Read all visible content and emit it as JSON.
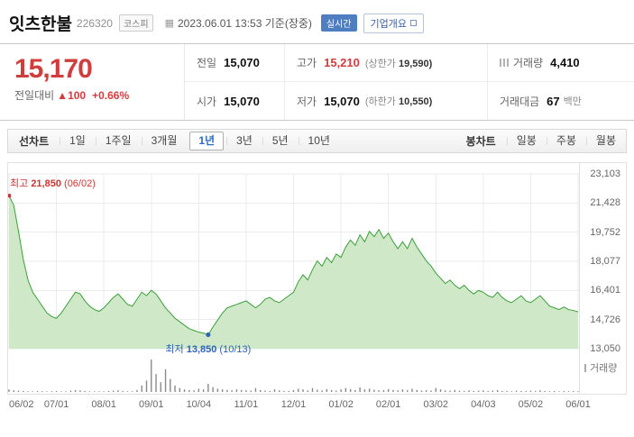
{
  "header": {
    "title": "잇츠한불",
    "code": "226320",
    "market_badge": "코스피",
    "timestamp": "2023.06.01 13:53 기준(장중)",
    "realtime_badge": "실시간",
    "overview_button": "기업개요"
  },
  "icons": {
    "calendar": "▦"
  },
  "price_panel": {
    "current_price": "15,170",
    "change_label": "전일대비",
    "change_arrow": "▲",
    "change_value": "100",
    "change_percent": "+0.66%",
    "rows": [
      [
        {
          "key": "prev",
          "label": "전일",
          "value": "15,070"
        },
        {
          "key": "high",
          "label": "고가",
          "value": "15,210",
          "red": true,
          "sub_label": "(상한가",
          "sub_value": "19,590)"
        },
        {
          "key": "volume",
          "label": "거래량",
          "value": "4,410",
          "icon": true
        }
      ],
      [
        {
          "key": "open",
          "label": "시가",
          "value": "15,070"
        },
        {
          "key": "low",
          "label": "저가",
          "value": "15,070",
          "sub_label": "(하한가",
          "sub_value": "10,550)"
        },
        {
          "key": "amount",
          "label": "거래대금",
          "value": "67",
          "unit": "백만"
        }
      ]
    ]
  },
  "toolbar": {
    "line_chart_label": "선차트",
    "periods": [
      "1일",
      "1주일",
      "3개월",
      "1년",
      "3년",
      "5년",
      "10년"
    ],
    "selected_period": "1년",
    "candle_chart_label": "봉차트",
    "candle_periods": [
      "일봉",
      "주봉",
      "월봉"
    ],
    "selected_candle": ""
  },
  "colors": {
    "up_red": "#d13c3c",
    "annotation_blue": "#2d62b8",
    "selected_tab_blue": "#2e6bc0",
    "realtime_badge_blue": "#4f7ec0"
  },
  "chart_data": {
    "type": "area",
    "ylim": [
      13050,
      23103
    ],
    "y_ticks": [
      "23,103",
      "21,428",
      "19,752",
      "18,077",
      "16,401",
      "14,726",
      "13,050"
    ],
    "x_labels": [
      "06/02",
      "07/01",
      "08/01",
      "09/01",
      "10/04",
      "11/01",
      "12/01",
      "01/02",
      "02/01",
      "03/02",
      "04/03",
      "05/02",
      "06/01"
    ],
    "x_label_indices": [
      0,
      10,
      20,
      30,
      40,
      50,
      60,
      70,
      80,
      90,
      100,
      110,
      120
    ],
    "values": [
      21850,
      21300,
      19800,
      18200,
      17000,
      16300,
      15900,
      15500,
      15100,
      14900,
      14800,
      15100,
      15500,
      15900,
      16300,
      16200,
      15800,
      15500,
      15300,
      15200,
      15400,
      15700,
      16000,
      16200,
      15900,
      15600,
      15500,
      15900,
      16300,
      16100,
      16400,
      16200,
      15800,
      15400,
      15100,
      14800,
      14600,
      14400,
      14200,
      14100,
      14000,
      13950,
      13850,
      14300,
      14700,
      15100,
      15400,
      15500,
      15600,
      15700,
      15800,
      15600,
      15400,
      15600,
      15900,
      16000,
      15800,
      15700,
      15900,
      16100,
      16300,
      16900,
      17300,
      17000,
      17600,
      18100,
      17800,
      18300,
      18000,
      18500,
      18300,
      18900,
      19300,
      19000,
      19600,
      19200,
      19800,
      19500,
      19900,
      19400,
      19700,
      19200,
      18800,
      19200,
      18800,
      19400,
      18900,
      18500,
      18100,
      17800,
      17400,
      17100,
      16800,
      17000,
      16700,
      16500,
      16700,
      16400,
      16200,
      16400,
      16300,
      16100,
      16000,
      16300,
      16000,
      15800,
      15700,
      15900,
      16100,
      15800,
      15700,
      15900,
      16100,
      15800,
      15500,
      15400,
      15300,
      15450,
      15300,
      15250,
      15170
    ],
    "volume": [
      8,
      5,
      4,
      3,
      2,
      2,
      3,
      2,
      2,
      2,
      3,
      2,
      2,
      4,
      6,
      5,
      3,
      2,
      2,
      2,
      2,
      3,
      4,
      5,
      3,
      2,
      2,
      6,
      20,
      35,
      100,
      55,
      30,
      70,
      40,
      20,
      12,
      8,
      6,
      5,
      10,
      8,
      25,
      15,
      10,
      8,
      6,
      5,
      8,
      6,
      5,
      4,
      12,
      6,
      4,
      3,
      8,
      5,
      3,
      3,
      6,
      10,
      8,
      5,
      12,
      7,
      5,
      9,
      6,
      4,
      8,
      12,
      9,
      6,
      14,
      8,
      10,
      7,
      5,
      6,
      9,
      6,
      5,
      8,
      5,
      10,
      6,
      4,
      5,
      4,
      12,
      8,
      5,
      4,
      6,
      4,
      3,
      5,
      3,
      4,
      5,
      3,
      4,
      6,
      3,
      3,
      2,
      4,
      3,
      3,
      4,
      3,
      5,
      3,
      2,
      3,
      2,
      3,
      2,
      3,
      2
    ],
    "max_annotation": {
      "label": "최고",
      "value": "21,850",
      "date": "(06/02)",
      "index": 0
    },
    "min_annotation": {
      "label": "최저",
      "value": "13,850",
      "date": "(10/13)",
      "index": 42
    },
    "volume_axis_label": "거래량",
    "line_color": "#3a9e3a",
    "fill_color": "#cfe9c8",
    "volume_color": "#8a8a8a",
    "max_color": "#cc3333",
    "min_color": "#2d62b8"
  }
}
